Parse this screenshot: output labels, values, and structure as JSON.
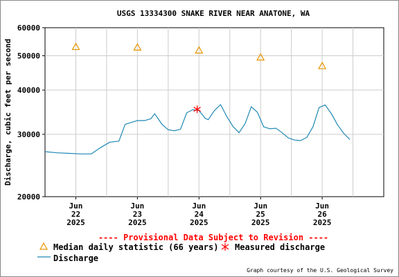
{
  "chart_data": {
    "type": "line",
    "title": "USGS 13334300 SNAKE RIVER NEAR ANATONE, WA",
    "ylabel": "Discharge, cubic feet per second",
    "xlabel": "",
    "yscale": "log",
    "ylim": [
      20000,
      60000
    ],
    "yticks": [
      "20000",
      "30000",
      "40000",
      "50000",
      "60000"
    ],
    "xlim": [
      21.5,
      27.0
    ],
    "xticks": [
      {
        "x": 22,
        "month": "Jun",
        "day": "22",
        "year": "2025"
      },
      {
        "x": 23,
        "month": "Jun",
        "day": "23",
        "year": "2025"
      },
      {
        "x": 24,
        "month": "Jun",
        "day": "24",
        "year": "2025"
      },
      {
        "x": 25,
        "month": "Jun",
        "day": "25",
        "year": "2025"
      },
      {
        "x": 26,
        "month": "Jun",
        "day": "26",
        "year": "2025"
      }
    ],
    "grid": true,
    "series": [
      {
        "name": "Discharge",
        "kind": "line",
        "color": "#1e88b4",
        "x": [
          21.5,
          21.7,
          21.9,
          22.1,
          22.25,
          22.4,
          22.55,
          22.7,
          22.8,
          23.0,
          23.12,
          23.22,
          23.28,
          23.4,
          23.5,
          23.6,
          23.7,
          23.8,
          23.9,
          24.0,
          24.1,
          24.15,
          24.25,
          24.35,
          24.45,
          24.55,
          24.65,
          24.75,
          24.85,
          24.95,
          25.05,
          25.15,
          25.25,
          25.35,
          25.45,
          25.55,
          25.65,
          25.75,
          25.85,
          25.95,
          26.05,
          26.15,
          26.25,
          26.35,
          26.45
        ],
        "y": [
          26800,
          26600,
          26500,
          26400,
          26400,
          27500,
          28500,
          28700,
          32000,
          32800,
          32800,
          33200,
          34300,
          32000,
          30900,
          30700,
          31000,
          34500,
          35200,
          35000,
          33300,
          33000,
          35000,
          36400,
          33700,
          31600,
          30300,
          32200,
          35900,
          34600,
          31500,
          31100,
          31200,
          30300,
          29300,
          28900,
          28800,
          29400,
          31500,
          35700,
          36300,
          34300,
          31900,
          30200,
          29000
        ]
      },
      {
        "name": "Median daily statistic (66 years)",
        "kind": "triangle",
        "color": "#e69500",
        "x": [
          22,
          23,
          24,
          25,
          26
        ],
        "y": [
          53000,
          52800,
          51800,
          49500,
          46800
        ]
      },
      {
        "name": "Measured discharge",
        "kind": "asterisk",
        "color": "#ff0000",
        "x": [
          23.97
        ],
        "y": [
          35300
        ]
      }
    ]
  },
  "notice": "---- Provisional Data Subject to Revision ----",
  "legend": {
    "median_label": "Median daily statistic (66 years)",
    "measured_label": "Measured discharge",
    "discharge_label": "Discharge"
  },
  "credit": "Graph courtesy of the U.S. Geological Survey"
}
